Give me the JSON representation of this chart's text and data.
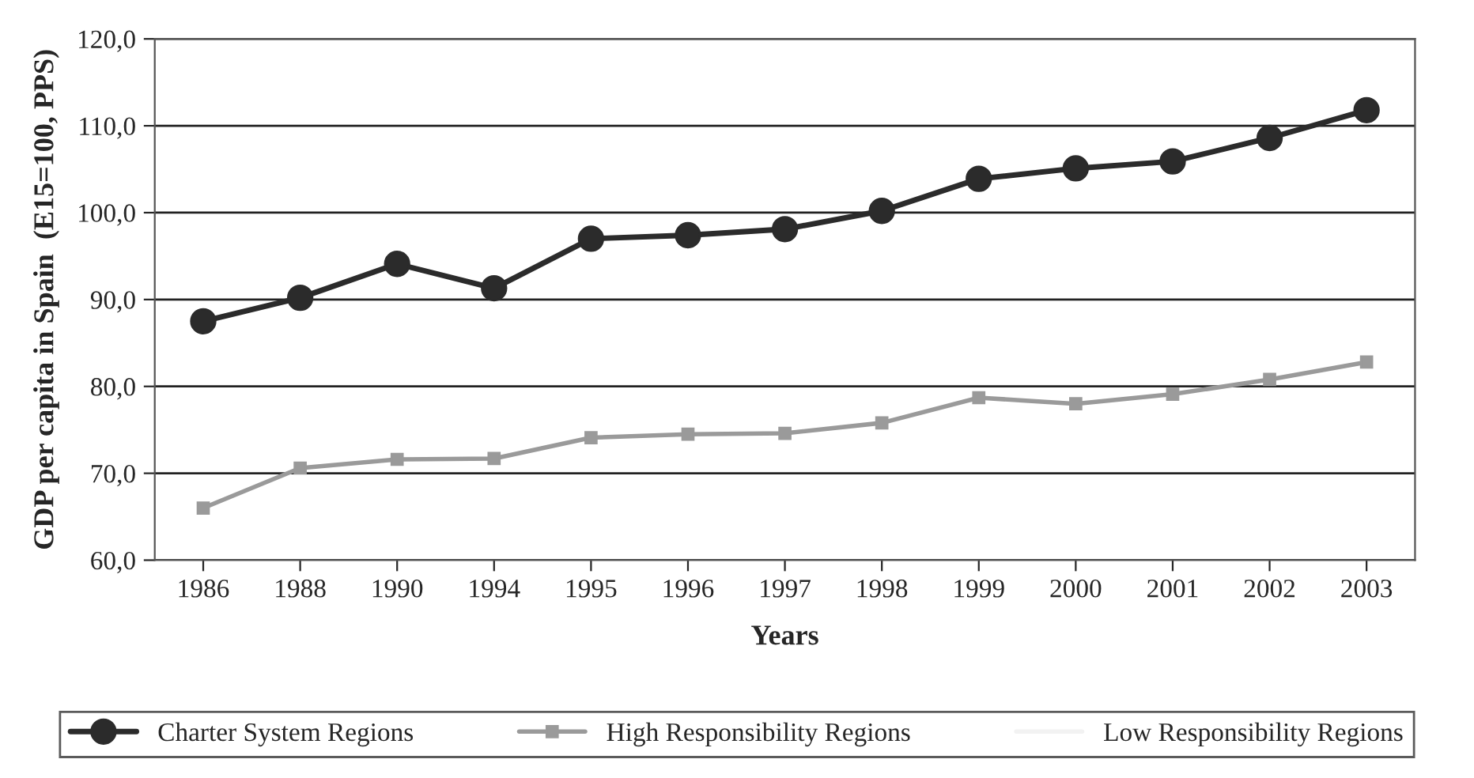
{
  "chart_data": {
    "type": "line",
    "xlabel": "Years",
    "ylabel": "GDP per capita in Spain  (E15=100, PPS)",
    "categories": [
      "1986",
      "1988",
      "1990",
      "1994",
      "1995",
      "1996",
      "1997",
      "1998",
      "1999",
      "2000",
      "2001",
      "2002",
      "2003"
    ],
    "series": [
      {
        "name": "Charter System Regions",
        "color": "#2b2b2b",
        "marker": "circle",
        "values": [
          87.5,
          90.2,
          94.1,
          91.3,
          97.0,
          97.4,
          98.1,
          100.2,
          103.9,
          105.1,
          105.9,
          108.6,
          111.8
        ]
      },
      {
        "name": "High Responsibility Regions",
        "color": "#9a9a9a",
        "marker": "square",
        "values": [
          66.0,
          70.6,
          71.6,
          71.7,
          74.1,
          74.5,
          74.6,
          75.8,
          78.7,
          78.0,
          79.1,
          80.8,
          82.8
        ]
      },
      {
        "name": "Low Responsibility Regions",
        "color": "#f2f2f2",
        "values": [
          null,
          null,
          null,
          null,
          null,
          null,
          null,
          null,
          null,
          null,
          null,
          null,
          null
        ]
      }
    ],
    "ylim": [
      60,
      120
    ],
    "yticks": [
      {
        "value": 60,
        "label": "60,0"
      },
      {
        "value": 70,
        "label": "70,0"
      },
      {
        "value": 80,
        "label": "80,0"
      },
      {
        "value": 90,
        "label": "90,0"
      },
      {
        "value": 100,
        "label": "100,0"
      },
      {
        "value": 110,
        "label": "110,0"
      },
      {
        "value": 120,
        "label": "120,0"
      }
    ],
    "grid": "y",
    "legend": "bottom"
  }
}
